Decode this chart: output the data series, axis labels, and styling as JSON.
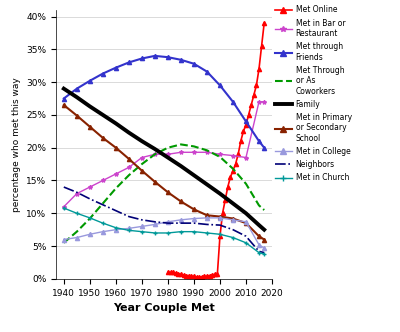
{
  "title": "",
  "xlabel": "Year Couple Met",
  "ylabel": "percentage who met this way",
  "xlim": [
    1937,
    2020
  ],
  "ylim": [
    0,
    0.41
  ],
  "yticks": [
    0.0,
    0.05,
    0.1,
    0.15,
    0.2,
    0.25,
    0.3,
    0.35,
    0.4
  ],
  "ytick_labels": [
    "0%",
    "5%",
    "10%",
    "15%",
    "20%",
    "25%",
    "30%",
    "35%",
    "40%"
  ],
  "xticks": [
    1940,
    1950,
    1960,
    1970,
    1980,
    1990,
    2000,
    2010,
    2020
  ],
  "background": "#ffffff",
  "series": {
    "met_online": {
      "label": "Met Online",
      "color": "#ff0000",
      "linewidth": 1.2,
      "marker": "^",
      "markersize": 3,
      "linestyle": "-",
      "x": [
        1980,
        1981,
        1982,
        1983,
        1984,
        1985,
        1986,
        1987,
        1988,
        1989,
        1990,
        1991,
        1992,
        1993,
        1994,
        1995,
        1996,
        1997,
        1998,
        1999,
        2000,
        2001,
        2002,
        2003,
        2004,
        2005,
        2006,
        2007,
        2008,
        2009,
        2010,
        2011,
        2012,
        2013,
        2014,
        2015,
        2016,
        2017
      ],
      "y": [
        0.01,
        0.01,
        0.01,
        0.009,
        0.008,
        0.007,
        0.006,
        0.005,
        0.005,
        0.004,
        0.004,
        0.003,
        0.003,
        0.003,
        0.004,
        0.004,
        0.005,
        0.006,
        0.007,
        0.007,
        0.065,
        0.1,
        0.12,
        0.14,
        0.155,
        0.165,
        0.175,
        0.19,
        0.21,
        0.225,
        0.235,
        0.25,
        0.265,
        0.28,
        0.295,
        0.32,
        0.355,
        0.39
      ]
    },
    "met_bar": {
      "label": "Met in Bar or\nRestaurant",
      "color": "#cc44cc",
      "linewidth": 1.0,
      "marker": "*",
      "markersize": 3,
      "linestyle": "-",
      "x": [
        1940,
        1945,
        1950,
        1955,
        1960,
        1965,
        1970,
        1975,
        1980,
        1985,
        1990,
        1995,
        2000,
        2005,
        2010,
        2015,
        2017
      ],
      "y": [
        0.11,
        0.13,
        0.14,
        0.15,
        0.16,
        0.17,
        0.185,
        0.19,
        0.19,
        0.193,
        0.193,
        0.193,
        0.19,
        0.188,
        0.185,
        0.27,
        0.27
      ]
    },
    "met_friends": {
      "label": "Met through\nFriends",
      "color": "#3333cc",
      "linewidth": 1.5,
      "marker": "^",
      "markersize": 3,
      "linestyle": "-",
      "x": [
        1940,
        1945,
        1950,
        1955,
        1960,
        1965,
        1970,
        1975,
        1980,
        1985,
        1990,
        1995,
        2000,
        2005,
        2010,
        2015,
        2017
      ],
      "y": [
        0.275,
        0.29,
        0.302,
        0.313,
        0.322,
        0.33,
        0.336,
        0.34,
        0.338,
        0.334,
        0.328,
        0.316,
        0.295,
        0.27,
        0.24,
        0.21,
        0.2
      ]
    },
    "met_coworkers": {
      "label": "Met Through\nor As\nCoworkers",
      "color": "#009900",
      "linewidth": 1.5,
      "marker": null,
      "markersize": 0,
      "linestyle": "--",
      "x": [
        1940,
        1945,
        1950,
        1955,
        1960,
        1965,
        1970,
        1975,
        1980,
        1985,
        1990,
        1995,
        2000,
        2005,
        2010,
        2015,
        2017
      ],
      "y": [
        0.055,
        0.072,
        0.092,
        0.115,
        0.138,
        0.158,
        0.175,
        0.19,
        0.2,
        0.205,
        0.202,
        0.196,
        0.186,
        0.168,
        0.145,
        0.112,
        0.105
      ]
    },
    "family": {
      "label": "Family",
      "color": "#000000",
      "linewidth": 2.8,
      "marker": null,
      "markersize": 0,
      "linestyle": "-",
      "x": [
        1940,
        1945,
        1950,
        1955,
        1960,
        1965,
        1970,
        1975,
        1980,
        1985,
        1990,
        1995,
        2000,
        2005,
        2010,
        2015,
        2017
      ],
      "y": [
        0.29,
        0.277,
        0.263,
        0.25,
        0.237,
        0.223,
        0.21,
        0.198,
        0.185,
        0.172,
        0.158,
        0.144,
        0.13,
        0.115,
        0.1,
        0.082,
        0.075
      ]
    },
    "met_school": {
      "label": "Met in Primary\nor Secondary\nSchool",
      "color": "#882200",
      "linewidth": 1.5,
      "marker": "^",
      "markersize": 3,
      "linestyle": "-",
      "x": [
        1940,
        1945,
        1950,
        1955,
        1960,
        1965,
        1970,
        1975,
        1980,
        1985,
        1990,
        1995,
        2000,
        2005,
        2010,
        2015,
        2017
      ],
      "y": [
        0.265,
        0.249,
        0.232,
        0.215,
        0.2,
        0.183,
        0.165,
        0.148,
        0.132,
        0.118,
        0.106,
        0.097,
        0.095,
        0.092,
        0.085,
        0.065,
        0.06
      ]
    },
    "met_college": {
      "label": "Met in College",
      "color": "#9999dd",
      "linewidth": 1.0,
      "marker": "^",
      "markersize": 3,
      "linestyle": "-",
      "x": [
        1940,
        1945,
        1950,
        1955,
        1960,
        1965,
        1970,
        1975,
        1980,
        1985,
        1990,
        1995,
        2000,
        2005,
        2010,
        2015,
        2017
      ],
      "y": [
        0.06,
        0.063,
        0.068,
        0.072,
        0.075,
        0.077,
        0.08,
        0.083,
        0.087,
        0.09,
        0.092,
        0.093,
        0.093,
        0.09,
        0.087,
        0.052,
        0.047
      ]
    },
    "neighbors": {
      "label": "Neighbors",
      "color": "#000077",
      "linewidth": 1.2,
      "marker": null,
      "markersize": 0,
      "linestyle": "-.",
      "x": [
        1940,
        1945,
        1950,
        1955,
        1960,
        1965,
        1970,
        1975,
        1980,
        1985,
        1990,
        1995,
        2000,
        2005,
        2010,
        2015,
        2017
      ],
      "y": [
        0.14,
        0.132,
        0.122,
        0.113,
        0.104,
        0.095,
        0.09,
        0.087,
        0.085,
        0.085,
        0.085,
        0.083,
        0.082,
        0.075,
        0.065,
        0.042,
        0.04
      ]
    },
    "met_church": {
      "label": "Met in Church",
      "color": "#009999",
      "linewidth": 1.0,
      "marker": "+",
      "markersize": 3,
      "linestyle": "-",
      "x": [
        1940,
        1945,
        1950,
        1955,
        1960,
        1965,
        1970,
        1975,
        1980,
        1985,
        1990,
        1995,
        2000,
        2005,
        2010,
        2015,
        2017
      ],
      "y": [
        0.108,
        0.1,
        0.093,
        0.085,
        0.078,
        0.074,
        0.072,
        0.07,
        0.07,
        0.072,
        0.072,
        0.07,
        0.068,
        0.063,
        0.055,
        0.04,
        0.038
      ]
    }
  }
}
